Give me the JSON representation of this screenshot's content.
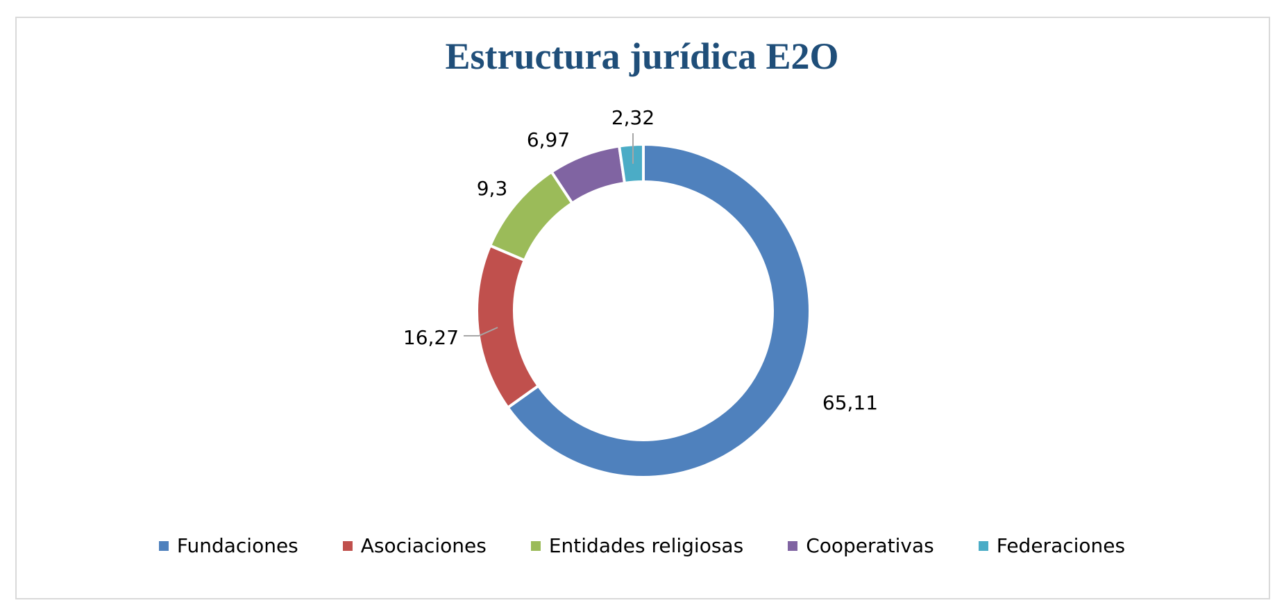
{
  "chart_data": {
    "type": "pie",
    "title": "Estructura jurídica E2O",
    "categories": [
      "Fundaciones",
      "Asociaciones",
      "Entidades religiosas",
      "Cooperativas",
      "Federaciones"
    ],
    "values": [
      65.11,
      16.27,
      9.3,
      6.97,
      2.32
    ],
    "data_labels": [
      "65,11",
      "16,27",
      "9,3",
      "6,97",
      "2,32"
    ],
    "colors": [
      "#4f81bd",
      "#c0504d",
      "#9bbb59",
      "#8064a2",
      "#4bacc6"
    ],
    "legend_position": "bottom",
    "style": "doughnut"
  }
}
